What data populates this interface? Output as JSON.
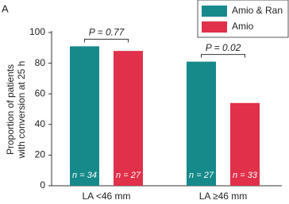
{
  "chart_data": {
    "type": "bar",
    "panel_label": "A",
    "ylabel": [
      "Proportion of patients",
      "with conversion at 25 h"
    ],
    "categories": [
      "LA <46 mm",
      "LA ≥46 mm"
    ],
    "series": [
      {
        "name": "Amio & Ran",
        "color": "#16898a",
        "values": [
          91,
          81
        ],
        "n_labels": [
          "n = 34",
          "n = 27"
        ]
      },
      {
        "name": "Amio",
        "color": "#e0304a",
        "values": [
          88,
          54
        ],
        "n_labels": [
          "n = 27",
          "n = 33"
        ]
      }
    ],
    "p_values": [
      "P = 0.77",
      "P = 0.02"
    ],
    "ylim": [
      0,
      100
    ],
    "yticks": [
      0,
      20,
      40,
      60,
      80,
      100
    ],
    "legend": "top-right"
  }
}
